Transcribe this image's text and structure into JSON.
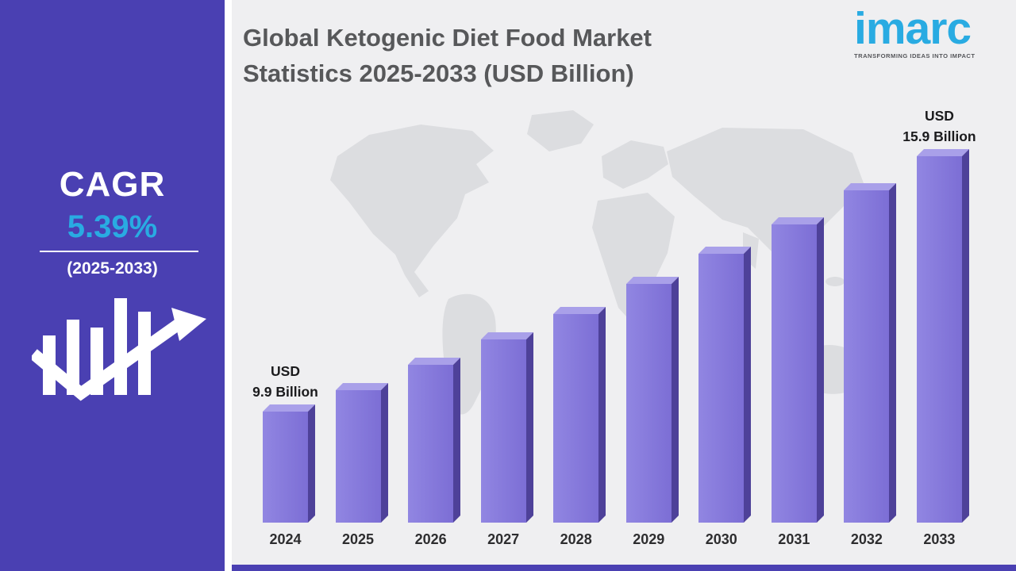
{
  "sidebar": {
    "cagr_label": "CAGR",
    "cagr_value": "5.39%",
    "cagr_period": "(2025-2033)"
  },
  "header": {
    "title_line1": "Global Ketogenic Diet Food Market",
    "title_line2": "Statistics 2025-2033 (USD Billion)"
  },
  "logo": {
    "wordmark": "imarc",
    "tagline": "TRANSFORMING IDEAS INTO IMPACT"
  },
  "chart_data": {
    "type": "bar",
    "title": "Global Ketogenic Diet Food Market Statistics 2025-2033 (USD Billion)",
    "categories": [
      "2024",
      "2025",
      "2026",
      "2027",
      "2028",
      "2029",
      "2030",
      "2031",
      "2032",
      "2033"
    ],
    "values": [
      9.9,
      10.4,
      11.0,
      11.6,
      12.2,
      12.9,
      13.6,
      14.3,
      15.1,
      15.9
    ],
    "annotations": [
      {
        "index": 0,
        "lines": [
          "USD",
          "9.9 Billion"
        ]
      },
      {
        "index": 9,
        "lines": [
          "USD",
          "15.9 Billion"
        ]
      }
    ]
  },
  "colors": {
    "sidebar_bg": "#4a40b2",
    "accent_cyan": "#29abe2",
    "main_bg": "#efeff1",
    "bar_face": "#8174d8",
    "bar_top": "#a9a0e9",
    "bar_side": "#4e4199",
    "title_text": "#57585a",
    "map_gray": "#dcdde0"
  }
}
